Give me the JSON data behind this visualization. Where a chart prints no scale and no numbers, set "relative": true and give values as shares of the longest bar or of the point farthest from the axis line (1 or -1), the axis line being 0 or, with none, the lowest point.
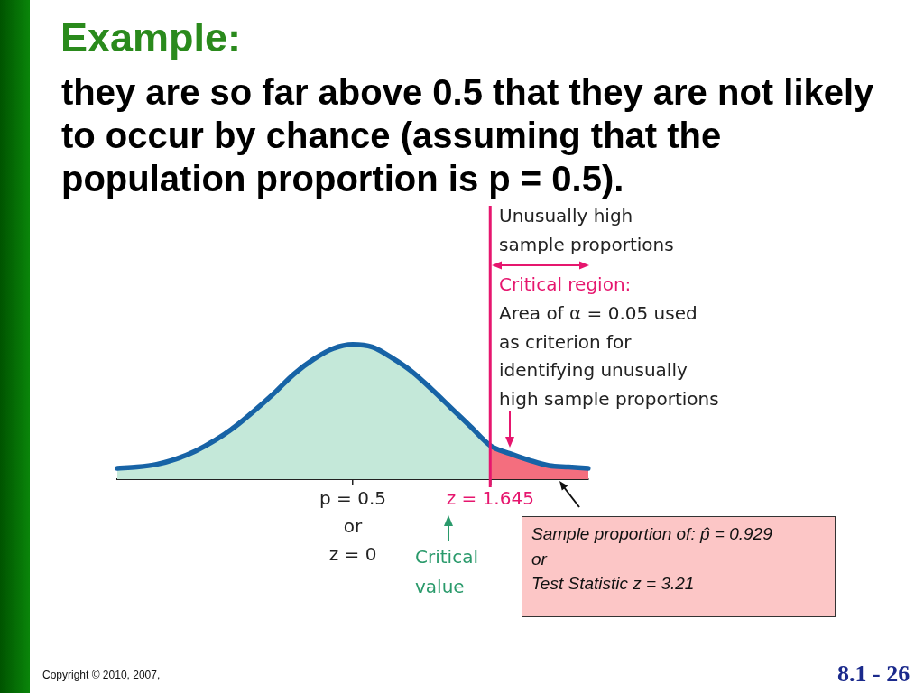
{
  "chart_data": {
    "type": "area",
    "title": "Example:",
    "subtitle": "they are so far above 0.5 that they are not likely to occur by chance (assuming that the population proportion is p = 0.5).",
    "categories": [
      null,
      null,
      null,
      null,
      null,
      null,
      null,
      null,
      null,
      null,
      null,
      null,
      "p = 0.5\nor\nz = 0",
      null,
      null,
      null,
      null,
      null,
      null,
      "z = 1.645",
      null,
      null,
      null,
      null,
      null
    ],
    "series": [
      {
        "color": "#c4e8d9",
        "values": [
          0.08,
          0.09,
          0.11,
          0.15,
          0.21,
          0.29,
          0.39,
          0.51,
          0.64,
          0.78,
          0.89,
          0.97,
          1,
          0.98,
          0.9,
          0.8,
          0.67,
          0.53,
          0.39,
          0.25,
          null,
          null,
          null,
          null,
          null
        ]
      },
      {
        "color": "#f46e7e",
        "values": [
          null,
          null,
          null,
          null,
          null,
          null,
          null,
          null,
          null,
          null,
          null,
          null,
          null,
          null,
          null,
          null,
          null,
          null,
          null,
          0.25,
          0.19,
          0.14,
          0.1,
          0.09,
          0.08
        ]
      },
      {
        "type": "line",
        "color": "#1763a6",
        "values": [
          0.08,
          0.09,
          0.11,
          0.15,
          0.21,
          0.29,
          0.39,
          0.51,
          0.64,
          0.78,
          0.89,
          0.97,
          1,
          0.98,
          0.9,
          0.8,
          0.67,
          0.53,
          0.39,
          0.25,
          0.19,
          0.14,
          0.1,
          0.09,
          0.08
        ]
      }
    ],
    "relative": true,
    "ref_lines": [
      {
        "axis": "x",
        "value": "z = 1.645",
        "color": "#e6166e"
      }
    ],
    "annotations": [
      "Unusually high\nsample proportions",
      "Critical region:",
      "Area of α = 0.05 used\nas criterion for\nidentifying unusually\nhigh sample proportions",
      "Critical\nvalue",
      "Sample proportion of: p̂ = 0.929\nor\nTest Statistic z = 3.21",
      "Copyright © 2010, 2007,",
      "8.1 - 26"
    ],
    "legend": false,
    "grid": false
  }
}
